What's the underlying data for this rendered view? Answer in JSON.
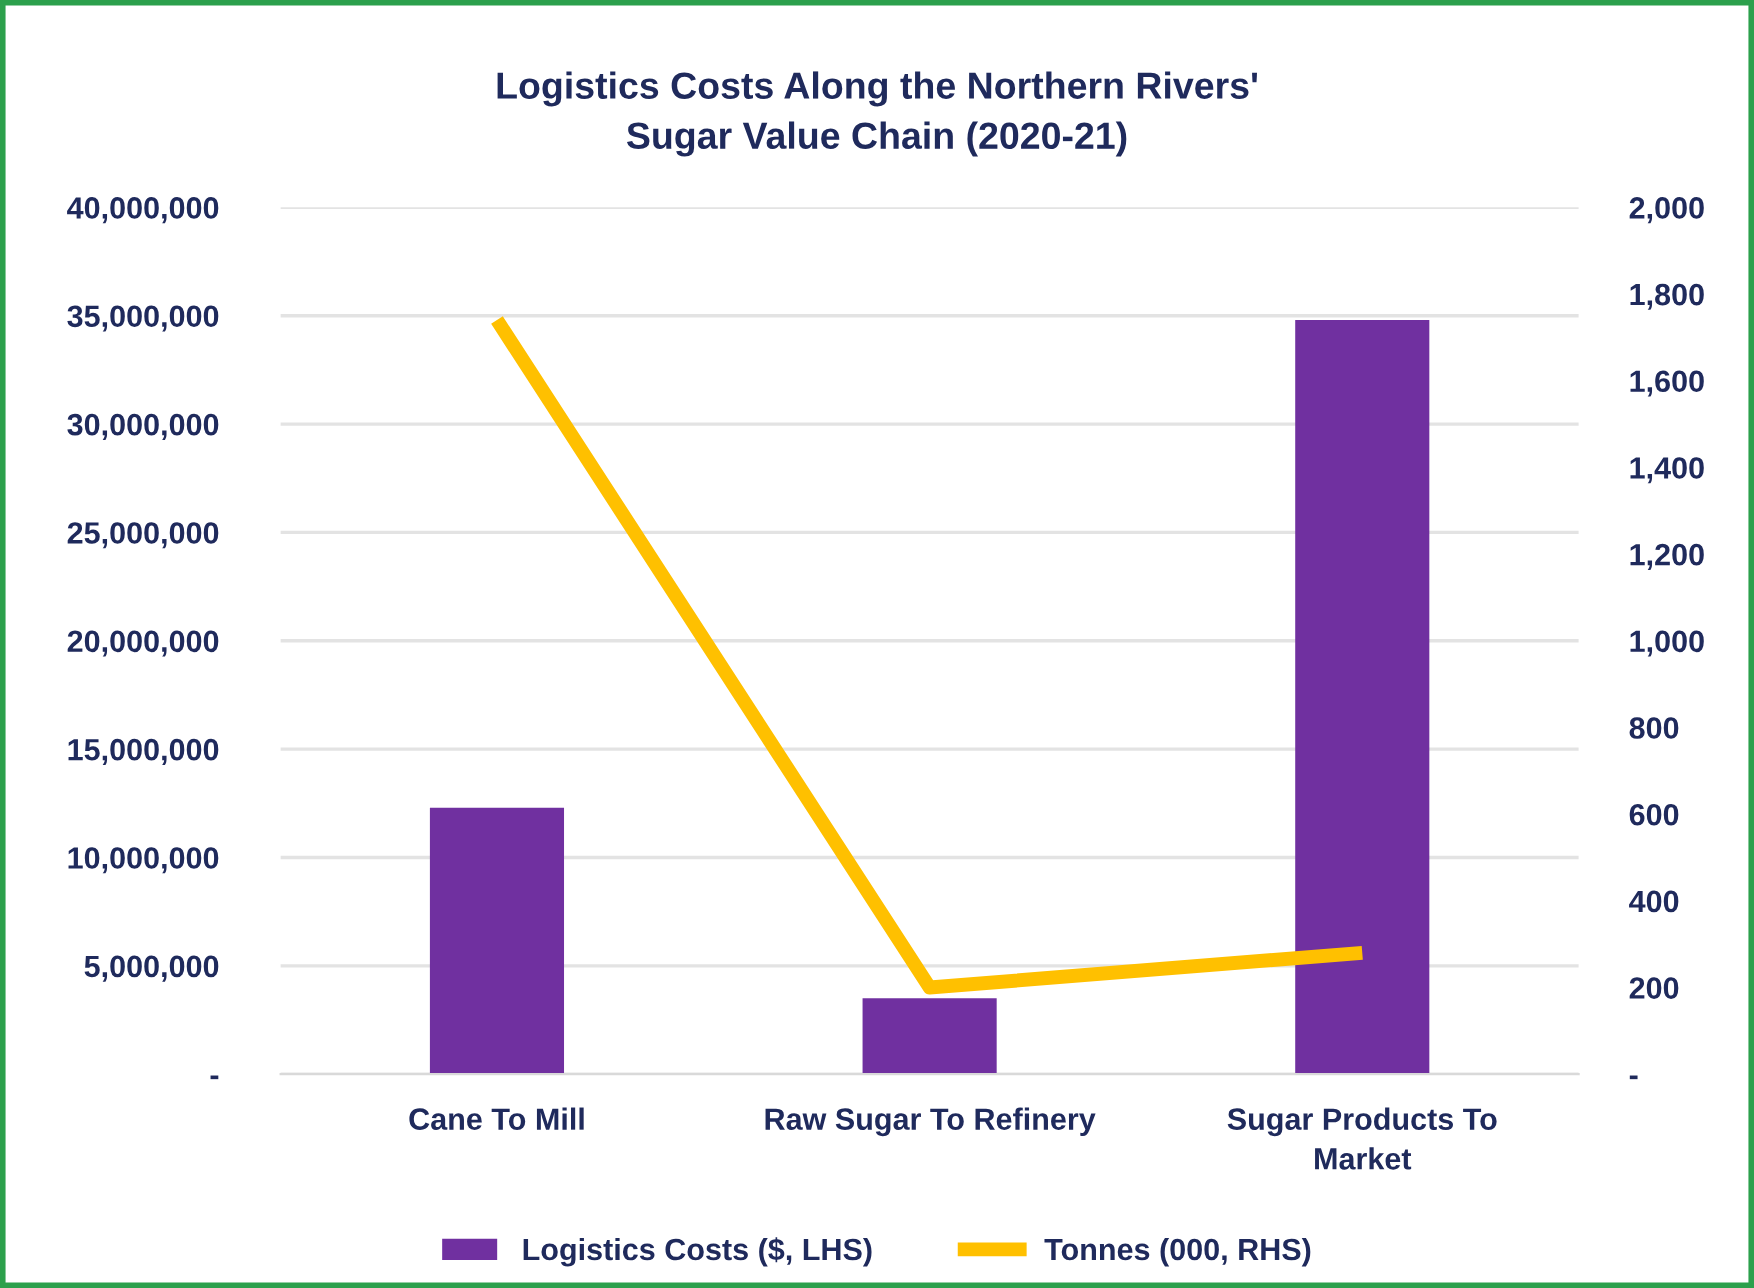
{
  "chart_data": {
    "type": "bar",
    "title": "Logistics Costs Along the Northern Rivers'\nSugar Value Chain (2020-21)",
    "categories": [
      "Cane To Mill",
      "Raw Sugar To Refinery",
      "Sugar Products To\nMarket"
    ],
    "series": [
      {
        "name": "Logistics Costs ($, LHS)",
        "color": "#7030a0",
        "values": [
          12300000,
          3500000,
          34800000
        ]
      },
      {
        "name": "Tonnes (000, RHS)",
        "type": "line",
        "axis": "y2",
        "color": "#ffc000",
        "values": [
          1740,
          200,
          280
        ]
      }
    ],
    "ylim": [
      0,
      40000000
    ],
    "yticks": [
      {
        "value": 0,
        "label": "-"
      },
      {
        "value": 5000000,
        "label": "5,000,000"
      },
      {
        "value": 10000000,
        "label": "10,000,000"
      },
      {
        "value": 15000000,
        "label": "15,000,000"
      },
      {
        "value": 20000000,
        "label": "20,000,000"
      },
      {
        "value": 25000000,
        "label": "25,000,000"
      },
      {
        "value": 30000000,
        "label": "30,000,000"
      },
      {
        "value": 35000000,
        "label": "35,000,000"
      },
      {
        "value": 40000000,
        "label": "40,000,000"
      }
    ],
    "y2lim": [
      0,
      2000
    ],
    "y2ticks": [
      {
        "value": 0,
        "label": "-"
      },
      200,
      400,
      600,
      800,
      {
        "value": 1000,
        "label": "1,000"
      },
      {
        "value": 1200,
        "label": "1,200"
      },
      {
        "value": 1400,
        "label": "1,400"
      },
      {
        "value": 1600,
        "label": "1,600"
      },
      {
        "value": 1800,
        "label": "1,800"
      },
      {
        "value": 2000,
        "label": "2,000"
      }
    ],
    "grid": "y",
    "legend": "bottom",
    "line_style": "solid"
  }
}
